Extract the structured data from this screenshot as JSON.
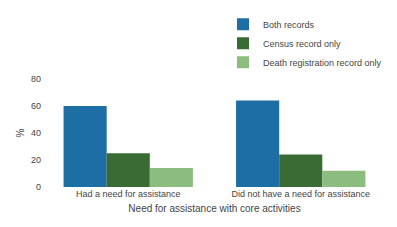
{
  "chart_data": {
    "type": "bar",
    "categories": [
      "Had a need for assistance",
      "Did not have a need for assistance"
    ],
    "series": [
      {
        "name": "Both records",
        "color": "#1C6EA4",
        "values": [
          60,
          64
        ]
      },
      {
        "name": "Census record only",
        "color": "#3A6B35",
        "values": [
          25,
          24
        ]
      },
      {
        "name": "Death registration record only",
        "color": "#8DBD7E",
        "values": [
          14,
          12
        ]
      }
    ],
    "xlabel": "Need for assistance with core activities",
    "ylabel": "%",
    "ylim": [
      0,
      80
    ],
    "yticks": [
      0,
      20,
      40,
      60,
      80
    ],
    "grid": false,
    "legend": "upper right"
  }
}
